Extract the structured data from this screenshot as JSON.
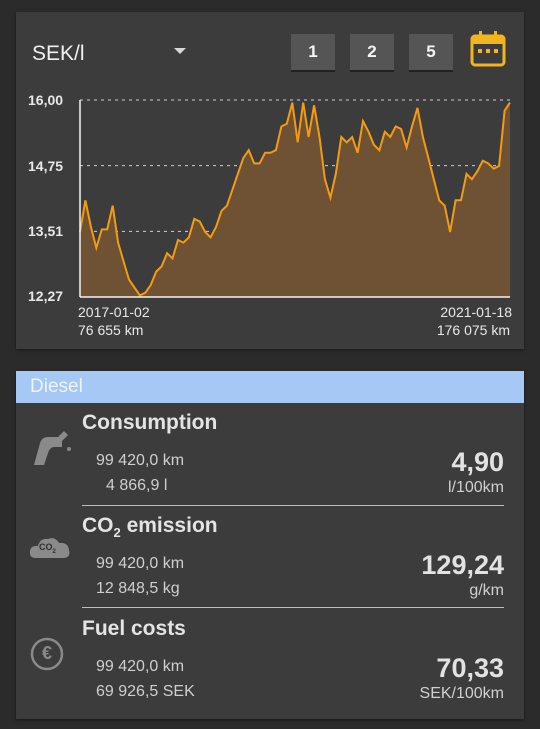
{
  "header": {
    "unit_label": "SEK/l",
    "range_buttons": [
      "1",
      "2",
      "5"
    ],
    "calendar_icon": "calendar-icon"
  },
  "chart_data": {
    "type": "area",
    "y_ticks": [
      "16,00",
      "14,75",
      "13,51",
      "12,27"
    ],
    "ylim": [
      12.27,
      16.0
    ],
    "grid": true,
    "line_color": "#f39c12",
    "fill_color": "#6e5233",
    "x_start": {
      "date": "2017-01-02",
      "odometer": "76 655 km"
    },
    "x_end": {
      "date": "2021-01-18",
      "odometer": "176 075 km"
    },
    "values": [
      13.5,
      14.1,
      13.6,
      13.2,
      13.55,
      13.55,
      14.0,
      13.3,
      12.95,
      12.6,
      12.45,
      12.3,
      12.35,
      12.5,
      12.75,
      12.85,
      13.1,
      13.0,
      13.35,
      13.3,
      13.4,
      13.75,
      13.7,
      13.5,
      13.4,
      13.6,
      13.9,
      14.0,
      14.3,
      14.6,
      14.9,
      15.05,
      14.8,
      14.8,
      15.0,
      15.0,
      15.05,
      15.5,
      15.55,
      15.95,
      15.2,
      15.95,
      15.3,
      15.9,
      15.3,
      14.5,
      14.15,
      14.6,
      15.3,
      15.2,
      15.3,
      15.0,
      15.6,
      15.4,
      15.15,
      15.05,
      15.4,
      15.3,
      15.5,
      15.45,
      15.1,
      15.5,
      15.85,
      15.3,
      14.9,
      14.5,
      14.1,
      14.0,
      13.5,
      14.1,
      14.1,
      14.6,
      14.5,
      14.65,
      14.85,
      14.8,
      14.7,
      14.75,
      15.8,
      15.95
    ]
  },
  "fuel": {
    "name": "Diesel",
    "header_color": "#a6c8f5",
    "consumption": {
      "title": "Consumption",
      "icon": "fuel-pump-icon",
      "line1": "99 420,0 km",
      "line2": "4 866,9 l",
      "value": "4,90",
      "unit": "l/100km"
    },
    "emission": {
      "title_main": "CO",
      "title_sub": "2",
      "title_rest": " emission",
      "icon": "co2-cloud-icon",
      "icon_text": "CO",
      "icon_sub": "2",
      "line1": "99 420,0 km",
      "line2": "12 848,5 kg",
      "value": "129,24",
      "unit": "g/km"
    },
    "costs": {
      "title": "Fuel costs",
      "icon": "euro-icon",
      "icon_text": "€",
      "line1": "99 420,0 km",
      "line2": "69 926,5 SEK",
      "value": "70,33",
      "unit": "SEK/100km"
    }
  }
}
